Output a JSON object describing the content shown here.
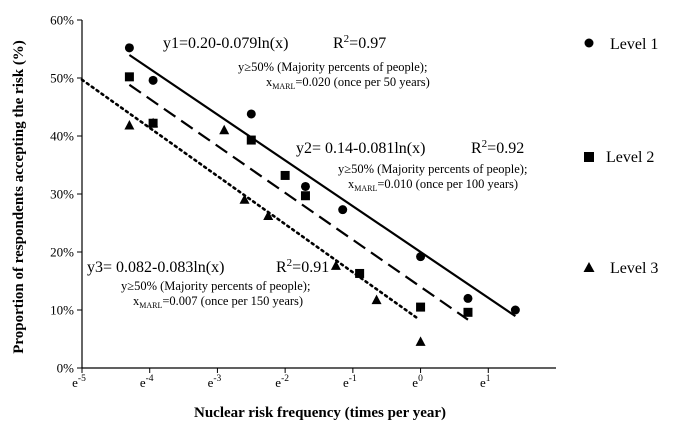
{
  "chart_data": {
    "type": "scatter",
    "xlabel": "Nuclear risk frequency (times per year)",
    "ylabel": "Proportion of respondents accepting the risk (%)",
    "x_scale": "ln",
    "xlim": [
      -5,
      2
    ],
    "ylim": [
      0,
      60
    ],
    "x_ticks": [
      -5,
      -4,
      -3,
      -2,
      -1,
      0,
      1
    ],
    "x_tick_base": "e",
    "y_ticks": [
      0,
      10,
      20,
      30,
      40,
      50,
      60
    ],
    "y_tick_suffix": "%",
    "grid": false,
    "legend_position": "right",
    "series": [
      {
        "name": "Level 1",
        "marker": "circle",
        "line_style": "solid",
        "points": [
          [
            -4.3,
            55.2
          ],
          [
            -3.95,
            49.6
          ],
          [
            -2.5,
            43.8
          ],
          [
            -1.7,
            31.3
          ],
          [
            -1.15,
            27.3
          ],
          [
            0.0,
            19.2
          ],
          [
            0.7,
            12.0
          ],
          [
            1.4,
            10.0
          ]
        ],
        "fit": {
          "a": 0.2,
          "b": -0.079,
          "x_range": [
            -4.3,
            1.4
          ]
        },
        "equation": "y1=0.20-0.079ln(x)",
        "r2_label": "R",
        "r2_sup": "2",
        "r2_value": "=0.97",
        "note1": "y≥50% (Majority percents of people);",
        "note2_x": "x",
        "note2_sub": "MARL",
        "note2_rest": "=0.020 (once per 50 years)"
      },
      {
        "name": "Level 2",
        "marker": "square",
        "line_style": "dashed",
        "points": [
          [
            -4.3,
            50.2
          ],
          [
            -3.95,
            42.2
          ],
          [
            -2.5,
            39.3
          ],
          [
            -2.0,
            33.2
          ],
          [
            -1.7,
            29.7
          ],
          [
            -0.9,
            16.3
          ],
          [
            0.0,
            10.5
          ],
          [
            0.7,
            9.6
          ]
        ],
        "fit": {
          "a": 0.14,
          "b": -0.081,
          "x_range": [
            -4.3,
            0.7
          ]
        },
        "equation": "y2= 0.14-0.081ln(x)",
        "r2_label": "R",
        "r2_sup": "2",
        "r2_value": "=0.92",
        "note1": "y≥50% (Majority percents of people);",
        "note2_x": "x",
        "note2_sub": "MARL",
        "note2_rest": "=0.010 (once per 100 years)"
      },
      {
        "name": "Level 3",
        "marker": "triangle",
        "line_style": "dotted",
        "points": [
          [
            -4.3,
            41.8
          ],
          [
            -3.95,
            42.2
          ],
          [
            -2.9,
            41.0
          ],
          [
            -2.6,
            29.0
          ],
          [
            -2.25,
            26.2
          ],
          [
            -1.25,
            17.6
          ],
          [
            -0.65,
            11.7
          ],
          [
            0.0,
            4.5
          ]
        ],
        "fit": {
          "a": 0.082,
          "b": -0.083,
          "x_range": [
            -5,
            -0.05
          ]
        },
        "equation": "y3= 0.082-0.083ln(x)",
        "r2_label": "R",
        "r2_sup": "2",
        "r2_value": "=0.91",
        "note1": "y≥50% (Majority percents of people);",
        "note2_x": "x",
        "note2_sub": "MARL",
        "note2_rest": "=0.007 (once per 150 years)"
      }
    ]
  }
}
